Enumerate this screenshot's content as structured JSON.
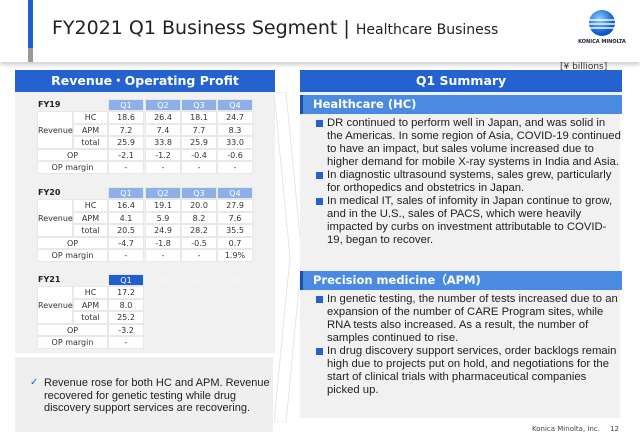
{
  "header": {
    "title": "FY2021 Q1 Business Segment",
    "separator": "|",
    "subtitle": "Healthcare Business",
    "logo_text": "KONICA MINOLTA"
  },
  "unit": "[¥ billions]",
  "left": {
    "title": "Revenue・Operating Profit",
    "quarters": [
      "Q1",
      "Q2",
      "Q3",
      "Q4"
    ],
    "row_labels": {
      "revenue": "Revenue",
      "hc": "HC",
      "apm": "APM",
      "total": "total",
      "op": "OP",
      "op_margin": "OP margin"
    },
    "years": [
      {
        "label": "FY19",
        "hc": [
          "18.6",
          "26.4",
          "18.1",
          "24.7"
        ],
        "apm": [
          "7.2",
          "7.4",
          "7.7",
          "8.3"
        ],
        "total": [
          "25.9",
          "33.8",
          "25.9",
          "33.0"
        ],
        "op": [
          "-2.1",
          "-1.2",
          "-0.4",
          "-0.6"
        ],
        "op_margin": [
          "-",
          "-",
          "-",
          "-"
        ]
      },
      {
        "label": "FY20",
        "hc": [
          "16.4",
          "19.1",
          "20.0",
          "27.9"
        ],
        "apm": [
          "4.1",
          "5.9",
          "8.2",
          "7.6"
        ],
        "total": [
          "20.5",
          "24.9",
          "28.2",
          "35.5"
        ],
        "op": [
          "-4.7",
          "-1.8",
          "-0.5",
          "0.7"
        ],
        "op_margin": [
          "-",
          "-",
          "-",
          "1.9%"
        ]
      },
      {
        "label": "FY21",
        "hc": [
          "17.2"
        ],
        "apm": [
          "8.0"
        ],
        "total": [
          "25.2"
        ],
        "op": [
          "-3.2"
        ],
        "op_margin": [
          "-"
        ]
      }
    ],
    "note": "Revenue rose for both HC and APM. Revenue recovered for genetic testing while drug discovery support services are recovering."
  },
  "right": {
    "title": "Q1 Summary",
    "sections": [
      {
        "heading": "Healthcare (HC)",
        "bullets": [
          "DR continued to perform well in Japan, and was solid in the Americas. In some region of Asia, COVID-19 continued to have an impact, but sales volume increased due to higher demand for mobile X-ray systems in India and Asia.",
          "In diagnostic ultrasound systems, sales grew, particularly for orthopedics and obstetrics in Japan.",
          "In medical IT, sales of infomity in Japan continue to grow, and in the U.S., sales of PACS, which were heavily impacted by curbs on investment attributable to COVID-19, began to recover."
        ]
      },
      {
        "heading": "Precision medicine（APM)",
        "bullets": [
          "In genetic testing, the number of tests increased due to an expansion of the number of CARE Program sites, while RNA tests also increased. As a result, the number of samples continued to rise.",
          "In drug discovery support services, order backlogs remain high due to projects put on hold, and negotiations for the start of clinical trials with pharmaceutical companies picked up."
        ]
      }
    ]
  },
  "footer": {
    "company": "Konica Minolta, Inc.",
    "page": "12"
  },
  "colors": {
    "accent": "#2462cf",
    "subhead": "#4a8ae0",
    "panel": "#f1f1f1"
  }
}
